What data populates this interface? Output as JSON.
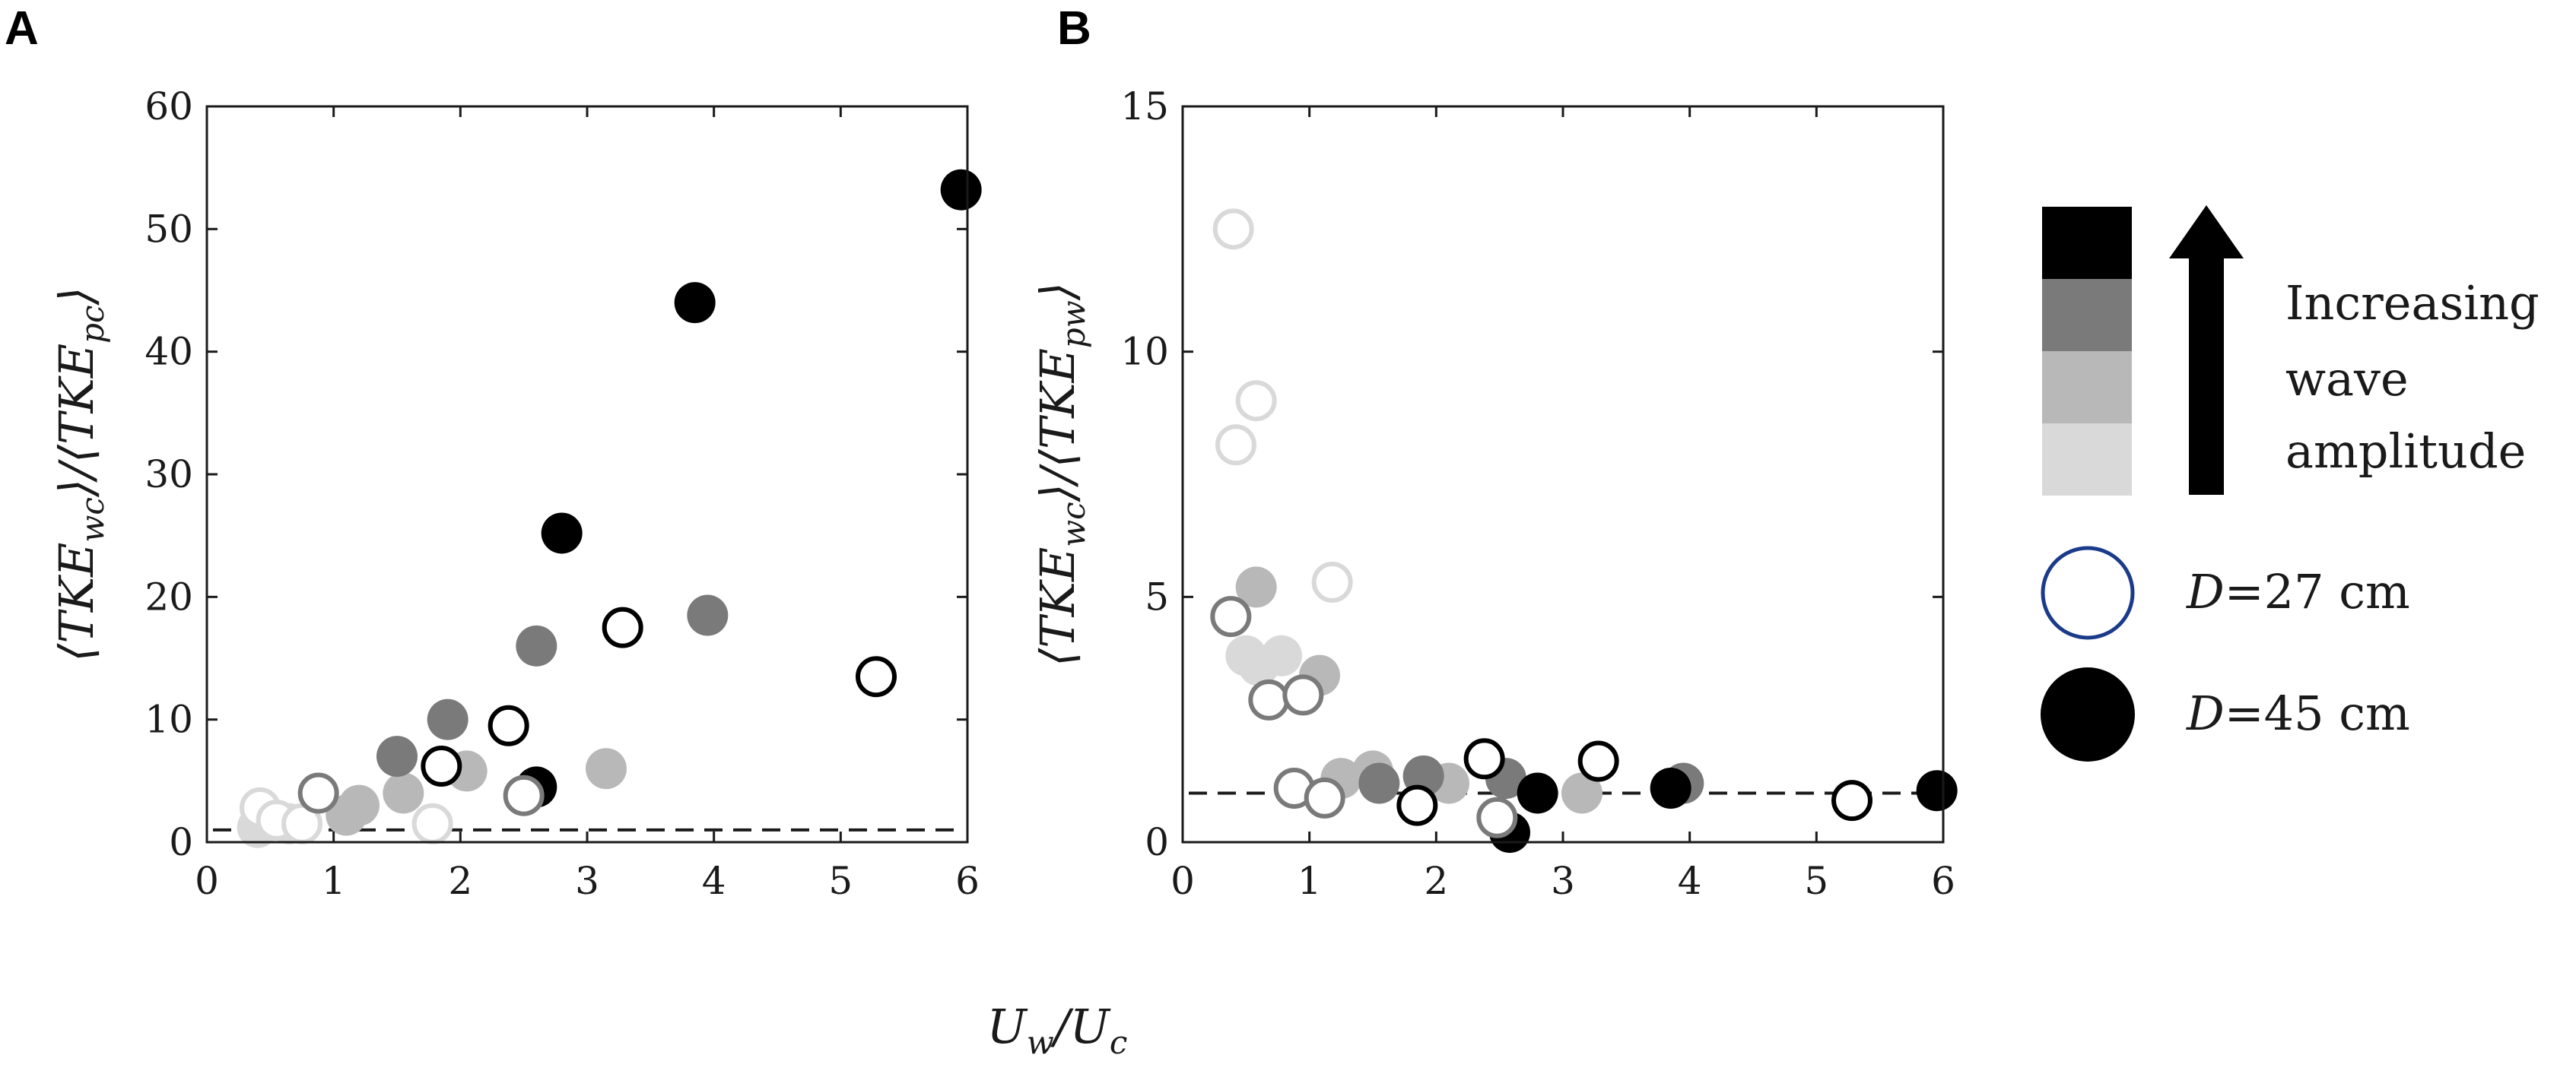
{
  "colors": {
    "level_1": "#d9d9d9",
    "level_2": "#b8b8b8",
    "level_3": "#7a7a7a",
    "level_4": "#000000"
  },
  "chart_data": [
    {
      "panel": "A",
      "type": "scatter",
      "xlabel": "U_w/U_c",
      "ylabel": "⟨TKE_wc⟩/⟨TKE_pc⟩",
      "xlim": [
        0,
        6
      ],
      "ylim": [
        0,
        60
      ],
      "xticks": [
        0,
        1,
        2,
        3,
        4,
        5,
        6
      ],
      "yticks": [
        0,
        10,
        20,
        30,
        40,
        50,
        60
      ],
      "reference_line_y": 1,
      "series": [
        {
          "diameter": "27 cm",
          "marker": "open",
          "points": [
            {
              "x": 0.42,
              "y": 2.8,
              "level": 1
            },
            {
              "x": 0.55,
              "y": 1.8,
              "level": 1
            },
            {
              "x": 0.75,
              "y": 1.5,
              "level": 1
            },
            {
              "x": 1.78,
              "y": 1.5,
              "level": 1
            },
            {
              "x": 0.88,
              "y": 4.0,
              "level": 3
            },
            {
              "x": 2.5,
              "y": 3.8,
              "level": 3
            },
            {
              "x": 1.85,
              "y": 6.2,
              "level": 4
            },
            {
              "x": 2.38,
              "y": 9.5,
              "level": 4
            },
            {
              "x": 3.28,
              "y": 17.5,
              "level": 4
            },
            {
              "x": 5.28,
              "y": 13.5,
              "level": 4
            }
          ]
        },
        {
          "diameter": "45 cm",
          "marker": "filled",
          "points": [
            {
              "x": 0.4,
              "y": 1.2,
              "level": 1
            },
            {
              "x": 0.65,
              "y": 1.5,
              "level": 1
            },
            {
              "x": 1.1,
              "y": 2.2,
              "level": 2
            },
            {
              "x": 1.2,
              "y": 3.0,
              "level": 2
            },
            {
              "x": 1.55,
              "y": 4.0,
              "level": 2
            },
            {
              "x": 2.05,
              "y": 5.8,
              "level": 2
            },
            {
              "x": 3.15,
              "y": 6.0,
              "level": 2
            },
            {
              "x": 1.5,
              "y": 7.0,
              "level": 3
            },
            {
              "x": 1.9,
              "y": 10.0,
              "level": 3
            },
            {
              "x": 2.6,
              "y": 16.0,
              "level": 3
            },
            {
              "x": 3.95,
              "y": 18.5,
              "level": 3
            },
            {
              "x": 2.6,
              "y": 4.5,
              "level": 4
            },
            {
              "x": 2.8,
              "y": 25.2,
              "level": 4
            },
            {
              "x": 3.85,
              "y": 44.0,
              "level": 4
            },
            {
              "x": 5.95,
              "y": 53.2,
              "level": 4
            }
          ]
        }
      ]
    },
    {
      "panel": "B",
      "type": "scatter",
      "xlabel": "U_w/U_c",
      "ylabel": "⟨TKE_wc⟩/⟨TKE_pw⟩",
      "xlim": [
        0,
        6
      ],
      "ylim": [
        0,
        15
      ],
      "xticks": [
        0,
        1,
        2,
        3,
        4,
        5,
        6
      ],
      "yticks": [
        0,
        5,
        10,
        15
      ],
      "reference_line_y": 1,
      "series": [
        {
          "diameter": "27 cm",
          "marker": "open",
          "points": [
            {
              "x": 0.4,
              "y": 12.5,
              "level": 1
            },
            {
              "x": 0.58,
              "y": 9.0,
              "level": 1
            },
            {
              "x": 0.42,
              "y": 8.1,
              "level": 1
            },
            {
              "x": 1.18,
              "y": 5.3,
              "level": 1
            },
            {
              "x": 0.38,
              "y": 4.6,
              "level": 3
            },
            {
              "x": 0.68,
              "y": 2.9,
              "level": 3
            },
            {
              "x": 0.95,
              "y": 3.0,
              "level": 3
            },
            {
              "x": 0.88,
              "y": 1.1,
              "level": 3
            },
            {
              "x": 1.12,
              "y": 0.9,
              "level": 3
            },
            {
              "x": 2.48,
              "y": 0.5,
              "level": 3
            },
            {
              "x": 1.85,
              "y": 0.75,
              "level": 4
            },
            {
              "x": 2.38,
              "y": 1.7,
              "level": 4
            },
            {
              "x": 3.28,
              "y": 1.65,
              "level": 4
            },
            {
              "x": 5.28,
              "y": 0.85,
              "level": 4
            }
          ]
        },
        {
          "diameter": "45 cm",
          "marker": "filled",
          "points": [
            {
              "x": 0.5,
              "y": 3.8,
              "level": 1
            },
            {
              "x": 0.6,
              "y": 3.6,
              "level": 1
            },
            {
              "x": 0.78,
              "y": 3.8,
              "level": 1
            },
            {
              "x": 0.58,
              "y": 5.2,
              "level": 2
            },
            {
              "x": 1.08,
              "y": 3.4,
              "level": 2
            },
            {
              "x": 1.25,
              "y": 1.3,
              "level": 2
            },
            {
              "x": 1.5,
              "y": 1.45,
              "level": 2
            },
            {
              "x": 2.1,
              "y": 1.2,
              "level": 2
            },
            {
              "x": 3.15,
              "y": 1.0,
              "level": 2
            },
            {
              "x": 1.55,
              "y": 1.2,
              "level": 3
            },
            {
              "x": 1.9,
              "y": 1.35,
              "level": 3
            },
            {
              "x": 2.55,
              "y": 1.3,
              "level": 3
            },
            {
              "x": 3.95,
              "y": 1.2,
              "level": 3
            },
            {
              "x": 2.58,
              "y": 0.2,
              "level": 4
            },
            {
              "x": 2.8,
              "y": 1.0,
              "level": 4
            },
            {
              "x": 3.85,
              "y": 1.1,
              "level": 4
            },
            {
              "x": 5.95,
              "y": 1.05,
              "level": 4
            }
          ]
        }
      ]
    }
  ],
  "legend": {
    "gradient_caption": [
      "Increasing",
      "wave",
      "amplitude"
    ],
    "d27_var": "D",
    "d27_text": "=27 cm",
    "d45_var": "D",
    "d45_text": "=45 cm",
    "open_stroke_color": "#1a3a8a"
  }
}
